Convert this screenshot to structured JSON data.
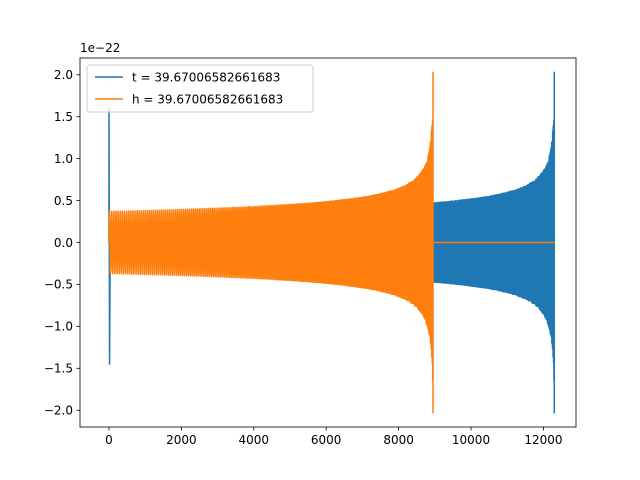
{
  "chart_data": {
    "type": "line",
    "title": "",
    "xlabel": "",
    "ylabel": "",
    "offset_text": "1e−22",
    "xlim": [
      -800,
      12900
    ],
    "ylim": [
      -2.2,
      2.2
    ],
    "y_scale": 1e-22,
    "x_ticks": [
      0,
      2000,
      4000,
      6000,
      8000,
      10000,
      12000
    ],
    "x_tick_labels": [
      "0",
      "2000",
      "4000",
      "6000",
      "8000",
      "10000",
      "12000"
    ],
    "y_ticks": [
      -2.0,
      -1.5,
      -1.0,
      -0.5,
      0.0,
      0.5,
      1.0,
      1.5,
      2.0
    ],
    "y_tick_labels": [
      "−2.0",
      "−1.5",
      "−1.0",
      "−0.5",
      "0.0",
      "0.5",
      "1.0",
      "1.5",
      "2.0"
    ],
    "grid": false,
    "legend_position": "top-left",
    "series": [
      {
        "name": "t = 39.67006582661683",
        "color": "#1f77b4",
        "segments": [
          {
            "kind": "spike",
            "x": 0,
            "min": -1.45,
            "max": 1.6
          },
          {
            "kind": "chirp",
            "x_start": 3300,
            "x_end": 12300,
            "amp_start": 0.37,
            "amp_peak": 2.03
          },
          {
            "kind": "flat",
            "x_start": 0,
            "x_end": 3300,
            "value": 0.0
          }
        ]
      },
      {
        "name": "h = 39.67006582661683",
        "color": "#ff7f0e",
        "segments": [
          {
            "kind": "chirp",
            "x_start": 0,
            "x_end": 8950,
            "amp_start": 0.37,
            "amp_peak": 2.03
          },
          {
            "kind": "flat",
            "x_start": 8950,
            "x_end": 12300,
            "value": 0.0
          }
        ]
      }
    ]
  }
}
